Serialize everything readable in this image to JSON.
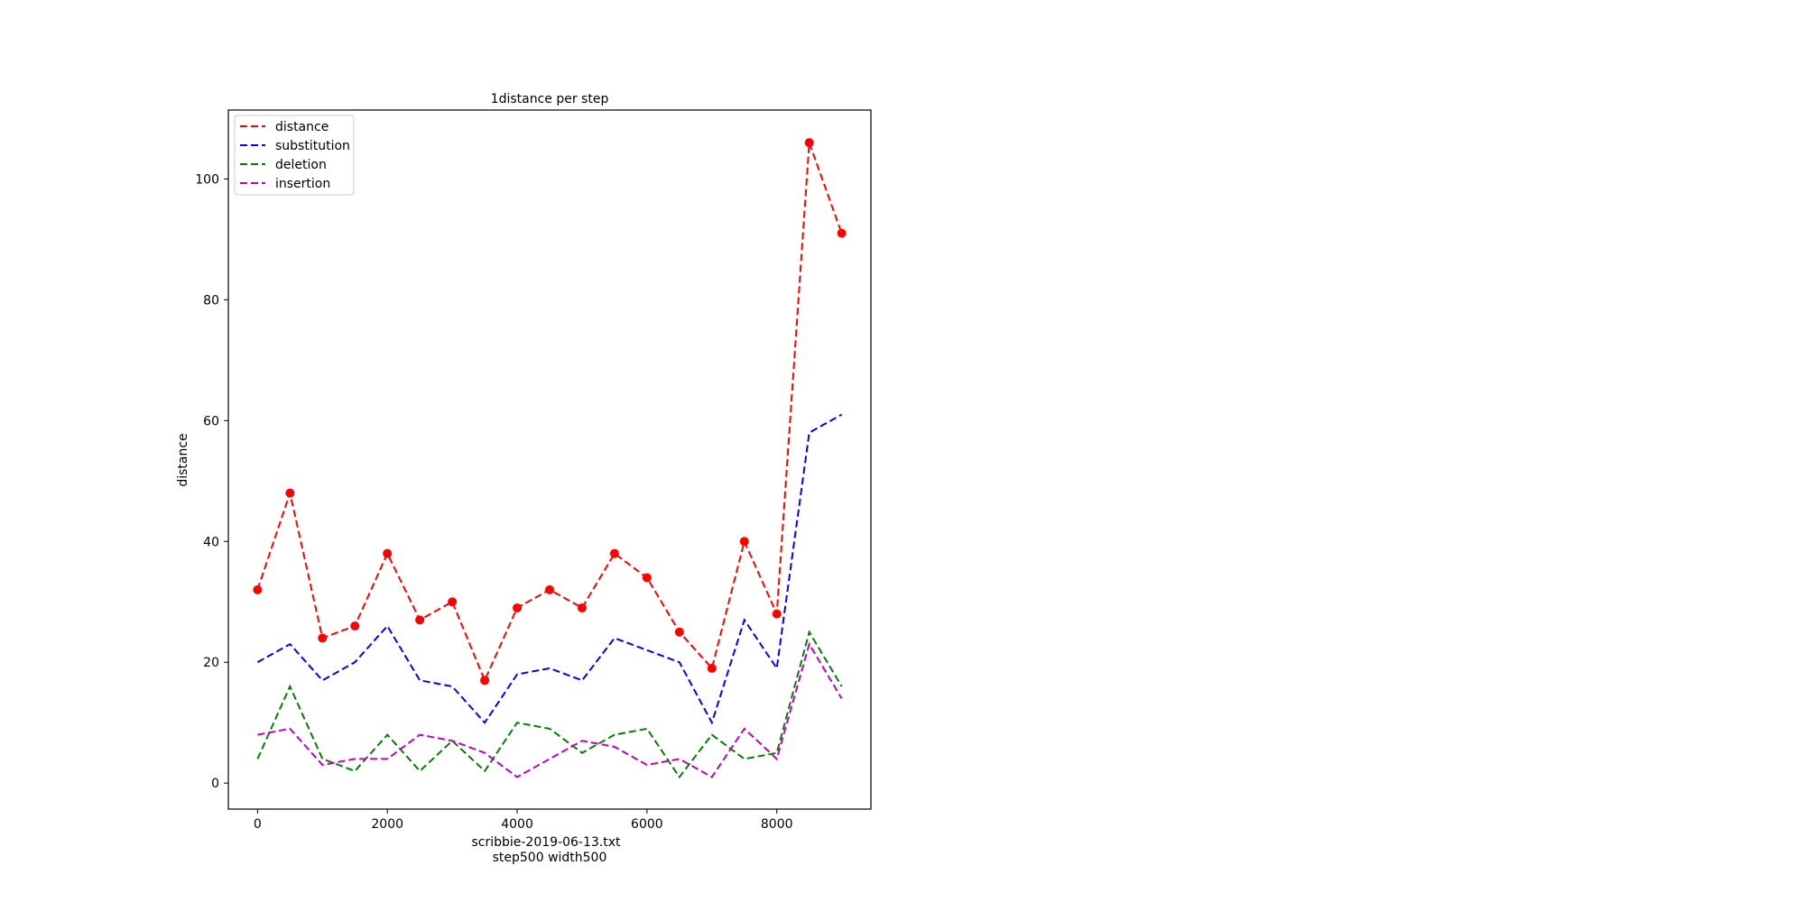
{
  "chart_data": {
    "type": "line",
    "title": "1distance per step",
    "xlabel": "scribbie-2019-06-13.txt",
    "xlabel_line2": "step500 width500",
    "ylabel": "distance",
    "xlim": [
      -450,
      9450
    ],
    "ylim": [
      -4.3,
      111.4
    ],
    "xticks": [
      0,
      2000,
      4000,
      6000,
      8000
    ],
    "yticks": [
      0,
      20,
      40,
      60,
      80,
      100
    ],
    "grid": false,
    "legend_position": "top-left",
    "x": [
      0,
      500,
      1000,
      1500,
      2000,
      2500,
      3000,
      3500,
      4000,
      4500,
      5000,
      5500,
      6000,
      6500,
      7000,
      7500,
      8000,
      8500,
      9000
    ],
    "series": [
      {
        "name": "distance",
        "color": "#ff0000",
        "markers": true,
        "values": [
          32,
          48,
          24,
          26,
          38,
          27,
          30,
          17,
          29,
          32,
          29,
          38,
          34,
          25,
          19,
          40,
          28,
          106,
          91
        ]
      },
      {
        "name": "substitution",
        "color": "#0000ff",
        "markers": false,
        "values": [
          20,
          23,
          17,
          20,
          26,
          17,
          16,
          10,
          18,
          19,
          17,
          24,
          22,
          20,
          10,
          27,
          19,
          58,
          61
        ]
      },
      {
        "name": "deletion",
        "color": "#008000",
        "markers": false,
        "values": [
          4,
          16,
          4,
          2,
          8,
          2,
          7,
          2,
          10,
          9,
          5,
          8,
          9,
          1,
          8,
          4,
          5,
          25,
          16
        ]
      },
      {
        "name": "insertion",
        "color": "#bf00bf",
        "markers": false,
        "values": [
          8,
          9,
          3,
          4,
          4,
          8,
          7,
          5,
          1,
          4,
          7,
          6,
          3,
          4,
          1,
          9,
          4,
          23,
          14
        ]
      }
    ]
  }
}
